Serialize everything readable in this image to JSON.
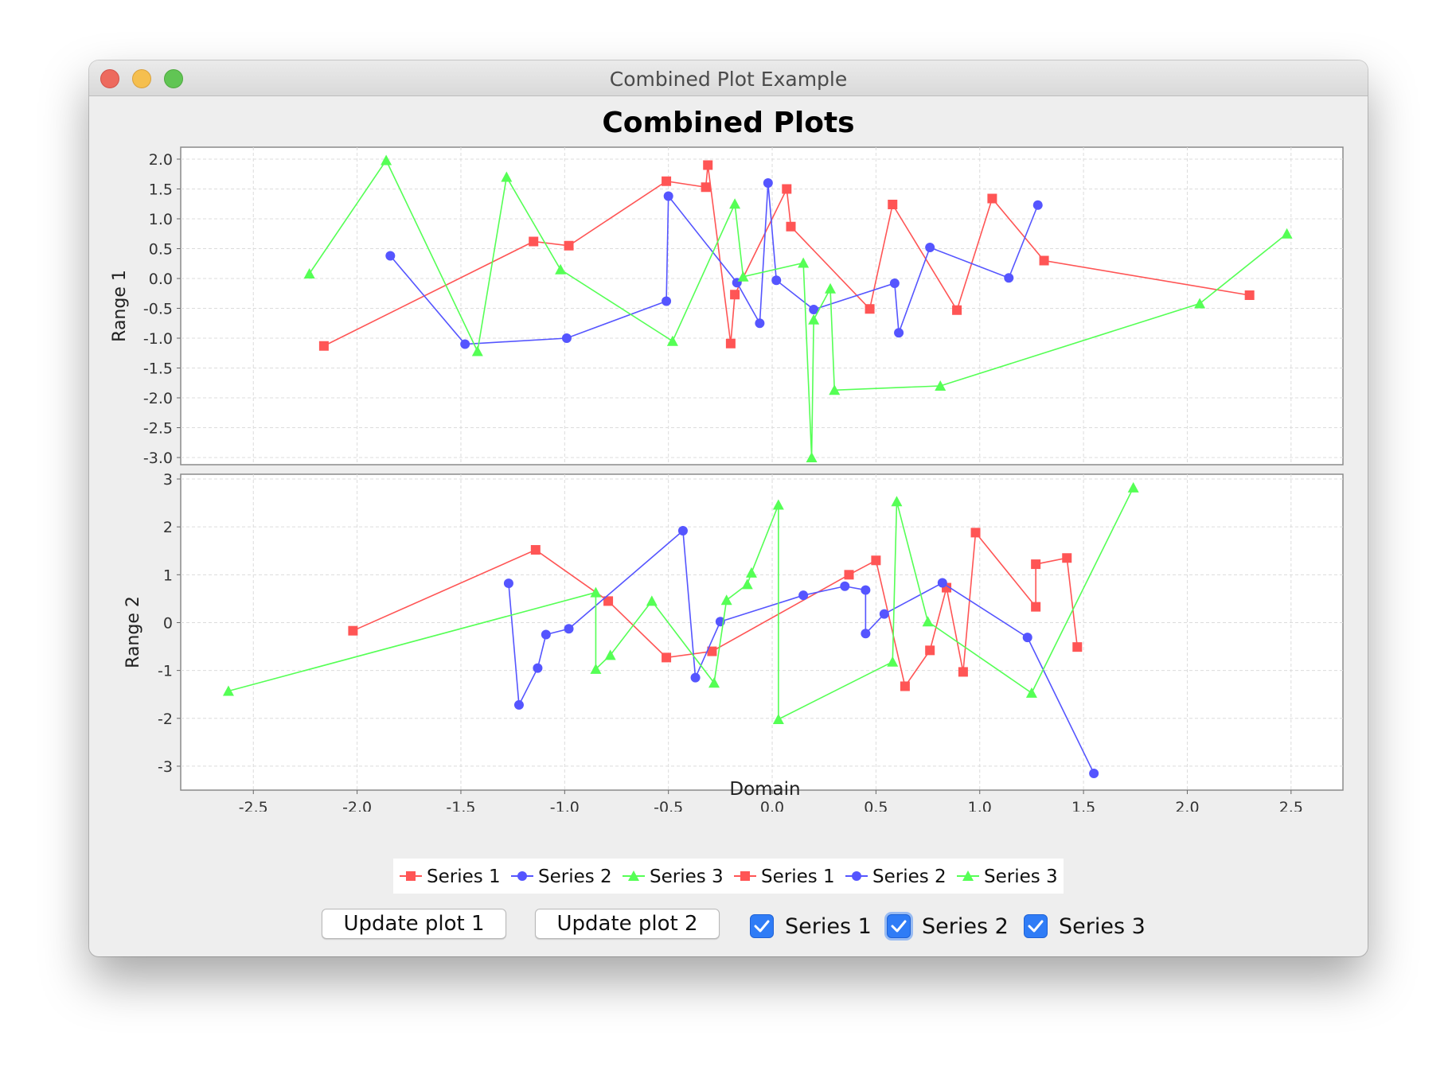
{
  "window": {
    "title": "Combined Plot Example"
  },
  "controls": {
    "update1_label": "Update plot 1",
    "update2_label": "Update plot 2",
    "checkboxes": [
      {
        "label": "Series 1",
        "checked": true
      },
      {
        "label": "Series 2",
        "checked": true
      },
      {
        "label": "Series 3",
        "checked": true
      }
    ]
  },
  "colors": {
    "series1": "#ff5555",
    "series2": "#5555ff",
    "series3": "#55ff55",
    "checkbox": "#2f7cf6"
  },
  "chart_data": {
    "type": "line",
    "title": "Combined Plots",
    "xlabel": "Domain",
    "xlim": [
      -2.85,
      2.75
    ],
    "xticks": [
      -2.5,
      -2.0,
      -1.5,
      -1.0,
      -0.5,
      0.0,
      0.5,
      1.0,
      1.5,
      2.0,
      2.5
    ],
    "xtick_labels": [
      "-2.5",
      "-2.0",
      "-1.5",
      "-1.0",
      "-0.5",
      "0.0",
      "0.5",
      "1.0",
      "1.5",
      "2.0",
      "2.5"
    ],
    "grid": true,
    "legend": [
      "Series 1",
      "Series 2",
      "Series 3",
      "Series 1",
      "Series 2",
      "Series 3"
    ],
    "legend_placement": "bottom",
    "subplots": [
      {
        "ylabel": "Range 1",
        "ylim": [
          -3.12,
          2.2
        ],
        "yticks": [
          -3.0,
          -2.5,
          -2.0,
          -1.5,
          -1.0,
          -0.5,
          0.0,
          0.5,
          1.0,
          1.5,
          2.0
        ],
        "ytick_labels": [
          "-3.0",
          "-2.5",
          "-2.0",
          "-1.5",
          "-1.0",
          "-0.5",
          "0.0",
          "0.5",
          "1.0",
          "1.5",
          "2.0"
        ],
        "series": [
          {
            "name": "Series 1",
            "marker": "square",
            "x": [
              -2.16,
              -1.15,
              -0.98,
              -0.51,
              -0.32,
              -0.31,
              -0.2,
              -0.18,
              0.07,
              0.09,
              0.47,
              0.58,
              0.89,
              1.06,
              1.31,
              2.3
            ],
            "y": [
              -1.13,
              0.62,
              0.55,
              1.63,
              1.53,
              1.9,
              -1.09,
              -0.27,
              1.5,
              0.87,
              -0.51,
              1.24,
              -0.53,
              1.34,
              0.3,
              -0.28
            ]
          },
          {
            "name": "Series 2",
            "marker": "circle",
            "x": [
              -1.84,
              -1.48,
              -0.99,
              -0.51,
              -0.5,
              -0.17,
              -0.06,
              -0.02,
              0.02,
              0.2,
              0.59,
              0.61,
              0.76,
              1.14,
              1.28
            ],
            "y": [
              0.38,
              -1.1,
              -1.0,
              -0.38,
              1.38,
              -0.07,
              -0.75,
              1.6,
              -0.03,
              -0.52,
              -0.08,
              -0.91,
              0.52,
              0.01,
              1.23
            ]
          },
          {
            "name": "Series 3",
            "marker": "triangle",
            "x": [
              -2.23,
              -1.86,
              -1.42,
              -1.28,
              -1.02,
              -0.48,
              -0.18,
              -0.14,
              0.15,
              0.19,
              0.2,
              0.28,
              0.3,
              0.81,
              2.06,
              2.48
            ],
            "y": [
              0.08,
              1.98,
              -1.22,
              1.7,
              0.15,
              -1.05,
              1.25,
              0.03,
              0.26,
              -3.0,
              -0.69,
              -0.17,
              -1.87,
              -1.8,
              -0.42,
              0.75
            ]
          }
        ]
      },
      {
        "ylabel": "Range 2",
        "ylim": [
          -3.5,
          3.1
        ],
        "yticks": [
          -3,
          -2,
          -1,
          0,
          1,
          2,
          3
        ],
        "ytick_labels": [
          "-3",
          "-2",
          "-1",
          "0",
          "1",
          "2",
          "3"
        ],
        "series": [
          {
            "name": "Series 1",
            "marker": "square",
            "x": [
              -2.02,
              -1.14,
              -0.79,
              -0.51,
              -0.29,
              0.37,
              0.5,
              0.64,
              0.76,
              0.84,
              0.92,
              0.98,
              1.27,
              1.27,
              1.42,
              1.47
            ],
            "y": [
              -0.17,
              1.52,
              0.45,
              -0.73,
              -0.6,
              1.0,
              1.3,
              -1.33,
              -0.58,
              0.73,
              -1.03,
              1.88,
              0.33,
              1.22,
              1.35,
              -0.51
            ]
          },
          {
            "name": "Series 2",
            "marker": "circle",
            "x": [
              -1.27,
              -1.22,
              -1.13,
              -1.09,
              -0.98,
              -0.43,
              -0.37,
              -0.25,
              0.15,
              0.35,
              0.45,
              0.45,
              0.54,
              0.82,
              1.23,
              1.55
            ],
            "y": [
              0.82,
              -1.72,
              -0.95,
              -0.25,
              -0.13,
              1.92,
              -1.15,
              0.02,
              0.57,
              0.76,
              0.68,
              -0.23,
              0.18,
              0.83,
              -0.31,
              -3.15
            ]
          },
          {
            "name": "Series 3",
            "marker": "triangle",
            "x": [
              -2.62,
              -0.85,
              -0.85,
              -0.78,
              -0.58,
              -0.28,
              -0.22,
              -0.12,
              -0.1,
              0.03,
              0.03,
              0.58,
              0.6,
              0.75,
              1.25,
              1.74
            ],
            "y": [
              -1.43,
              0.63,
              -0.97,
              -0.68,
              0.45,
              -1.26,
              0.47,
              0.8,
              1.04,
              2.46,
              -2.02,
              -0.82,
              2.53,
              0.02,
              -1.47,
              2.82
            ]
          }
        ]
      }
    ]
  }
}
